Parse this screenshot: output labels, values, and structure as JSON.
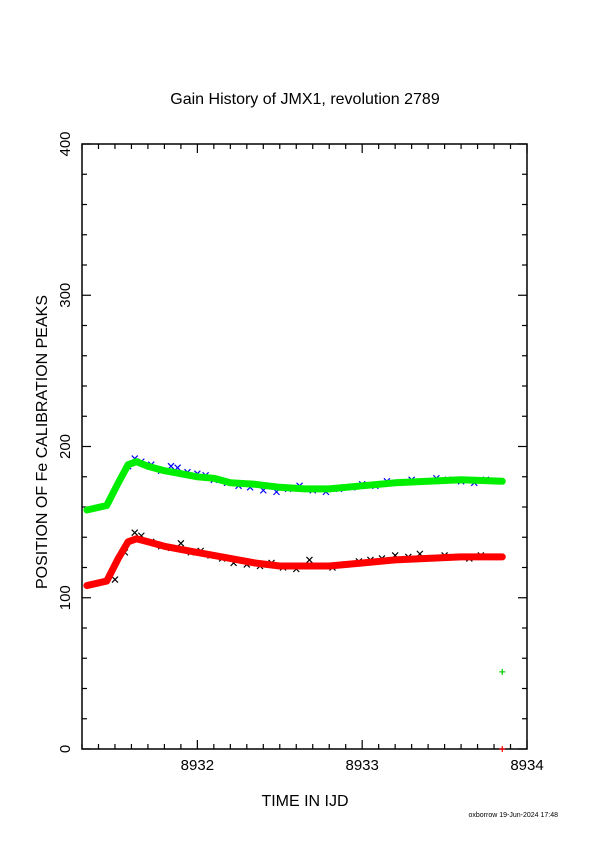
{
  "chart_data": {
    "type": "scatter",
    "title": "Gain History of JMX1, revolution 2789",
    "xlabel": "TIME IN IJD",
    "ylabel": "POSITION OF Fe CALIBRATION PEAKS",
    "xlim": [
      8931.3,
      8934.0
    ],
    "ylim": [
      0,
      400
    ],
    "x_ticks": [
      8932,
      8933,
      8934
    ],
    "y_ticks": [
      0,
      100,
      200,
      300,
      400
    ],
    "grid": false,
    "series": [
      {
        "kind": "scatter-x",
        "color": "#0000ff",
        "x": [
          8931.58,
          8931.62,
          8931.66,
          8931.72,
          8931.78,
          8931.84,
          8931.88,
          8931.94,
          8932.0,
          8932.05,
          8932.1,
          8932.18,
          8932.25,
          8932.32,
          8932.4,
          8932.48,
          8932.55,
          8932.62,
          8932.7,
          8932.78,
          8932.86,
          8932.94,
          8933.0,
          8933.08,
          8933.15,
          8933.22,
          8933.3,
          8933.38,
          8933.45,
          8933.52,
          8933.6,
          8933.68,
          8933.75,
          8933.82
        ],
        "y": [
          187,
          192,
          190,
          188,
          184,
          187,
          186,
          183,
          182,
          181,
          178,
          176,
          174,
          173,
          171,
          170,
          172,
          174,
          171,
          170,
          172,
          173,
          175,
          174,
          177,
          176,
          178,
          177,
          179,
          178,
          177,
          176,
          178,
          177
        ]
      },
      {
        "kind": "line",
        "color": "#00ee00",
        "x": [
          8931.33,
          8931.45,
          8931.52,
          8931.58,
          8931.63,
          8931.7,
          8931.8,
          8931.9,
          8932.0,
          8932.1,
          8932.2,
          8932.35,
          8932.5,
          8932.65,
          8932.8,
          8933.0,
          8933.2,
          8933.4,
          8933.6,
          8933.85
        ],
        "y": [
          158,
          161,
          176,
          188,
          190,
          187,
          184,
          182,
          180,
          179,
          176,
          175,
          173,
          172,
          172,
          174,
          176,
          177,
          178,
          177
        ]
      },
      {
        "kind": "scatter-x",
        "color": "#000000",
        "x": [
          8931.5,
          8931.56,
          8931.62,
          8931.66,
          8931.72,
          8931.78,
          8931.84,
          8931.9,
          8931.96,
          8932.02,
          8932.08,
          8932.15,
          8932.22,
          8932.3,
          8932.38,
          8932.45,
          8932.52,
          8932.6,
          8932.68,
          8932.75,
          8932.82,
          8932.9,
          8932.98,
          8933.05,
          8933.12,
          8933.2,
          8933.28,
          8933.35,
          8933.42,
          8933.5,
          8933.58,
          8933.65,
          8933.72,
          8933.8
        ],
        "y": [
          112,
          130,
          143,
          141,
          137,
          134,
          133,
          136,
          130,
          131,
          128,
          126,
          123,
          122,
          121,
          123,
          120,
          119,
          125,
          121,
          120,
          122,
          124,
          125,
          126,
          128,
          127,
          129,
          126,
          128,
          127,
          126,
          128,
          127
        ]
      },
      {
        "kind": "line",
        "color": "#ff0000",
        "x": [
          8931.33,
          8931.45,
          8931.52,
          8931.58,
          8931.63,
          8931.7,
          8931.8,
          8931.9,
          8932.0,
          8932.1,
          8932.2,
          8932.35,
          8932.5,
          8932.65,
          8932.8,
          8933.0,
          8933.2,
          8933.4,
          8933.6,
          8933.85
        ],
        "y": [
          108,
          111,
          126,
          137,
          139,
          137,
          134,
          132,
          130,
          128,
          126,
          123,
          121,
          121,
          121,
          123,
          125,
          126,
          127,
          127
        ]
      },
      {
        "kind": "scatter-plus",
        "color": "#00cc00",
        "x": [
          8933.85
        ],
        "y": [
          51
        ]
      },
      {
        "kind": "scatter-plus",
        "color": "#ff0000",
        "x": [
          8933.85
        ],
        "y": [
          0
        ]
      }
    ]
  },
  "footer": "oxborrow 19-Jun-2024 17:48"
}
